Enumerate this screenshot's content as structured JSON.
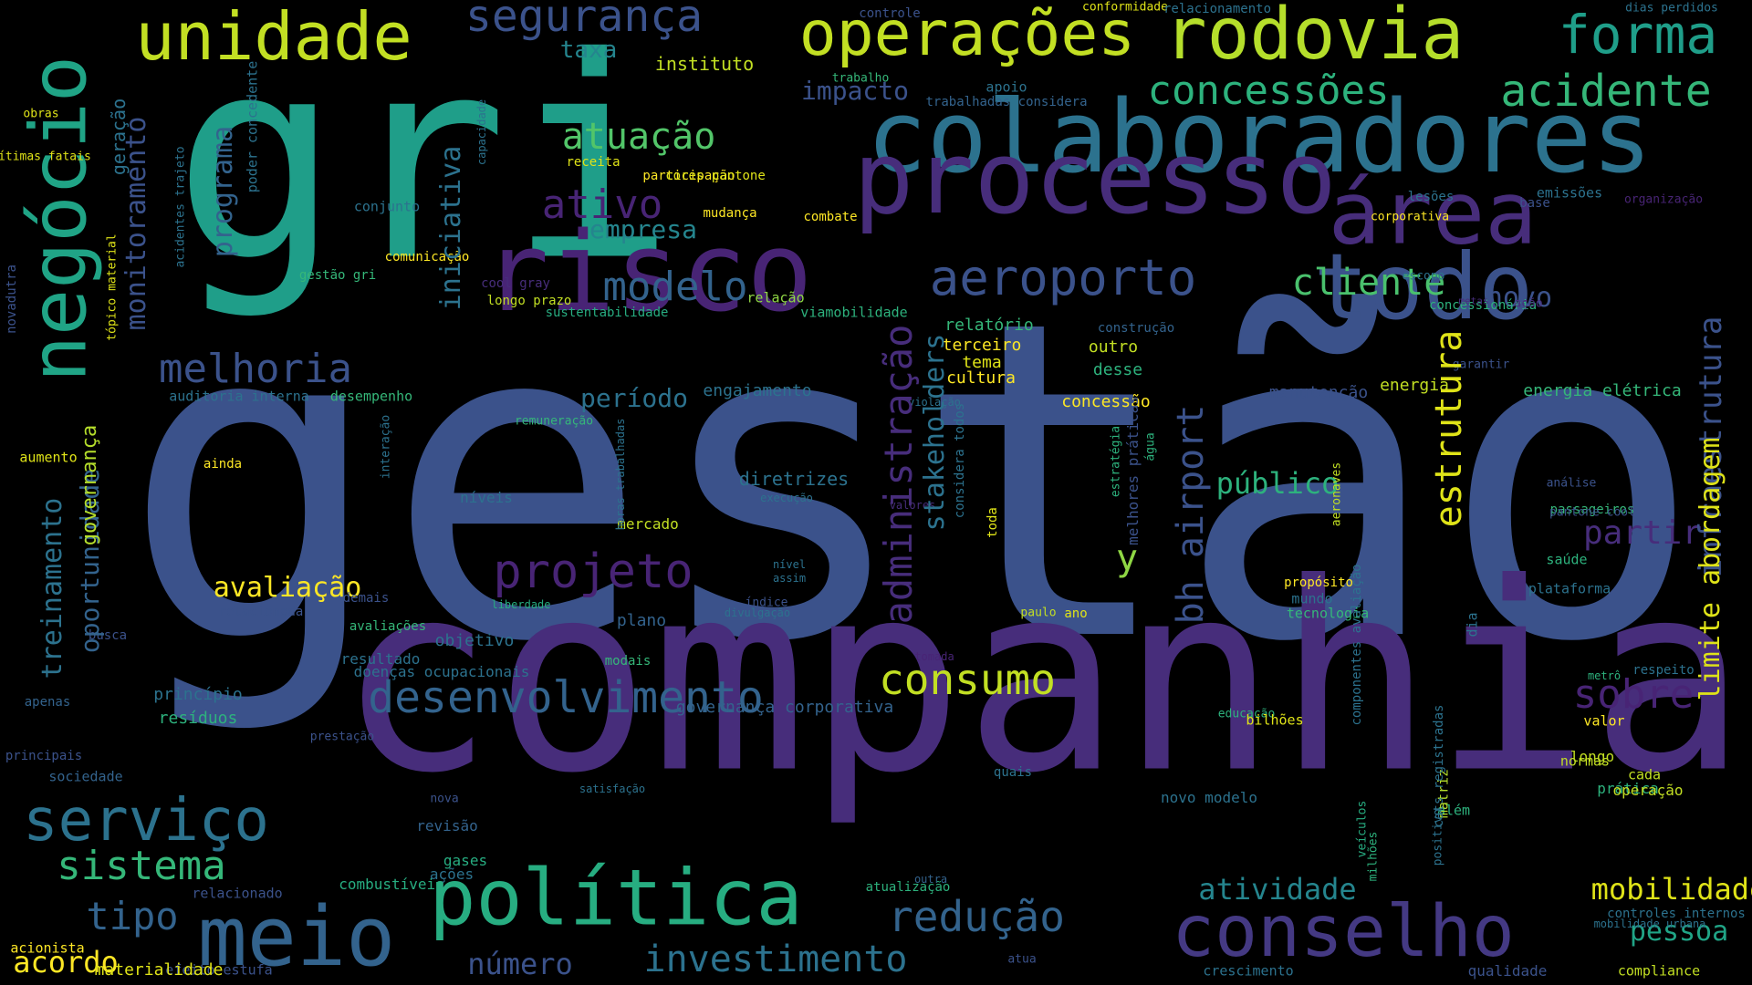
{
  "cloud": {
    "words": [
      {
        "t": "gestão",
        "c": "#3b528b"
      },
      {
        "t": "companhia",
        "c": "#472d7b"
      },
      {
        "t": "gri",
        "c": "#1f9e89"
      },
      {
        "t": "colaboradores",
        "c": "#2c728e"
      },
      {
        "t": "processo",
        "c": "#472d7b"
      },
      {
        "t": "risco",
        "c": "#482475"
      },
      {
        "t": "todo",
        "c": "#3b528b"
      },
      {
        "t": "área",
        "c": "#472d7b"
      },
      {
        "t": "rodovia",
        "c": "#b5de2b"
      },
      {
        "t": "operações",
        "c": "#c2df23"
      },
      {
        "t": "unidade",
        "c": "#c2df23"
      },
      {
        "t": "negócio",
        "c": "#20a486"
      },
      {
        "t": "conselho",
        "c": "#443983"
      },
      {
        "t": "política",
        "c": "#27ad81"
      },
      {
        "t": "meio",
        "c": "#33638d"
      },
      {
        "t": "serviço",
        "c": "#2c728e"
      },
      {
        "t": "aeroporto",
        "c": "#3b528b"
      },
      {
        "t": "desenvolvimento",
        "c": "#33638d"
      },
      {
        "t": "forma",
        "c": "#1f9e89"
      },
      {
        "t": "concessões",
        "c": "#2db27d"
      },
      {
        "t": "acidente",
        "c": "#35b779"
      },
      {
        "t": "segurança",
        "c": "#3b528b"
      },
      {
        "t": "sistema",
        "c": "#35b779"
      },
      {
        "t": "consumo",
        "c": "#c2df23"
      },
      {
        "t": "redução",
        "c": "#33638d"
      },
      {
        "t": "investimento",
        "c": "#2c728e"
      },
      {
        "t": "melhoria",
        "c": "#3b528b"
      },
      {
        "t": "projeto",
        "c": "#482475"
      },
      {
        "t": "modelo",
        "c": "#33638d"
      },
      {
        "t": "cliente",
        "c": "#4ac16d"
      },
      {
        "t": "atuação",
        "c": "#52c569"
      },
      {
        "t": "ativo",
        "c": "#482475"
      },
      {
        "t": "tipo",
        "c": "#33638d"
      },
      {
        "t": "acordo",
        "c": "#fde725"
      },
      {
        "t": "número",
        "c": "#3b528b"
      },
      {
        "t": "atividade",
        "c": "#25858e"
      },
      {
        "t": "mobilidade",
        "c": "#dfe318"
      },
      {
        "t": "pessoa",
        "c": "#20a486"
      },
      {
        "t": "sobre",
        "c": "#482475"
      },
      {
        "t": "partir",
        "c": "#472d7b"
      },
      {
        "t": "público",
        "c": "#2db27d"
      },
      {
        "t": "novo",
        "c": "#3b528b"
      },
      {
        "t": "período",
        "c": "#2c728e"
      },
      {
        "t": "avaliação",
        "c": "#fde725"
      },
      {
        "t": "impacto",
        "c": "#3b528b"
      },
      {
        "t": "empresa",
        "c": "#25858e"
      },
      {
        "t": "taxa",
        "c": "#25858e"
      },
      {
        "t": "instituto",
        "c": "#c2df23"
      },
      {
        "t": "y",
        "c": "#8fd744"
      },
      {
        "t": "diretrizes",
        "c": "#2c728e"
      },
      {
        "t": "plano",
        "c": "#33638d"
      },
      {
        "t": "princípio",
        "c": "#2c728e"
      },
      {
        "t": "resíduos",
        "c": "#2db27d"
      },
      {
        "t": "relatório",
        "c": "#35b779"
      },
      {
        "t": "manutenção",
        "c": "#3b528b"
      },
      {
        "t": "energia",
        "c": "#c2df23"
      },
      {
        "t": "energia elétrica",
        "c": "#35b779"
      },
      {
        "t": "engajamento",
        "c": "#2c728e"
      },
      {
        "t": "outro",
        "c": "#c2df23"
      },
      {
        "t": "desse",
        "c": "#2db27d"
      },
      {
        "t": "cultura",
        "c": "#fde725"
      },
      {
        "t": "tema",
        "c": "#dfe318"
      },
      {
        "t": "terceiro",
        "c": "#fde725"
      },
      {
        "t": "concessão",
        "c": "#fde725"
      },
      {
        "t": "governança corporativa",
        "c": "#33638d"
      },
      {
        "t": "objetivo",
        "c": "#2c728e"
      },
      {
        "t": "revisão",
        "c": "#33638d"
      },
      {
        "t": "ações",
        "c": "#2c728e"
      },
      {
        "t": "gases",
        "c": "#27ad81"
      },
      {
        "t": "resultado",
        "c": "#2c728e"
      },
      {
        "t": "doenças ocupacionais",
        "c": "#2c728e"
      },
      {
        "t": "modais",
        "c": "#35b779"
      },
      {
        "t": "combustíveis",
        "c": "#27ad81"
      },
      {
        "t": "atualização",
        "c": "#2db27d"
      },
      {
        "t": "efeito estufa",
        "c": "#3b528b"
      },
      {
        "t": "materialidade",
        "c": "#dfe318"
      },
      {
        "t": "acionista",
        "c": "#fde725"
      },
      {
        "t": "relacionado",
        "c": "#3b528b"
      },
      {
        "t": "sociedade",
        "c": "#33638d"
      },
      {
        "t": "principais",
        "c": "#3b528b"
      },
      {
        "t": "apenas",
        "c": "#33638d"
      },
      {
        "t": "busca",
        "c": "#3b528b"
      },
      {
        "t": "relacionada",
        "c": "#3b528b"
      },
      {
        "t": "avaliações",
        "c": "#35b779"
      },
      {
        "t": "demais",
        "c": "#3b528b"
      },
      {
        "t": "níveis",
        "c": "#2c728e"
      },
      {
        "t": "mercado",
        "c": "#c2df23"
      },
      {
        "t": "ainda",
        "c": "#fde725"
      },
      {
        "t": "aumento",
        "c": "#dfe318"
      },
      {
        "t": "auditoria interna",
        "c": "#2c728e"
      },
      {
        "t": "desempenho",
        "c": "#35b779"
      },
      {
        "t": "remuneração",
        "c": "#35b779"
      },
      {
        "t": "conjunto",
        "c": "#2c728e"
      },
      {
        "t": "comunicação",
        "c": "#fde725"
      },
      {
        "t": "gestão gri",
        "c": "#35b779"
      },
      {
        "t": "longo prazo",
        "c": "#c2df23"
      },
      {
        "t": "cool gray",
        "c": "#472d7b"
      },
      {
        "t": "sustentabilidade",
        "c": "#27ad81"
      },
      {
        "t": "relação",
        "c": "#8fd744"
      },
      {
        "t": "viamobilidade",
        "c": "#2db27d"
      },
      {
        "t": "construção",
        "c": "#33638d"
      },
      {
        "t": "combate",
        "c": "#fde725"
      },
      {
        "t": "mudança",
        "c": "#fde725"
      },
      {
        "t": "participação",
        "c": "#fde725"
      },
      {
        "t": "cores pantone",
        "c": "#dfe318"
      },
      {
        "t": "receita",
        "c": "#dfe318"
      },
      {
        "t": "obras",
        "c": "#dfe318"
      },
      {
        "t": "vítimas fatais",
        "c": "#dfe318"
      },
      {
        "t": "trabalho",
        "c": "#35b779"
      },
      {
        "t": "apoio",
        "c": "#2c728e"
      },
      {
        "t": "trabalhadas considera",
        "c": "#33638d"
      },
      {
        "t": "controle",
        "c": "#3b528b"
      },
      {
        "t": "conformidade",
        "c": "#dfe318"
      },
      {
        "t": "relacionamento",
        "c": "#2c728e"
      },
      {
        "t": "dias perdidos",
        "c": "#2c728e"
      },
      {
        "t": "lesões",
        "c": "#2c728e"
      },
      {
        "t": "corporativa",
        "c": "#fde725"
      },
      {
        "t": "emissões",
        "c": "#2c728e"
      },
      {
        "t": "base",
        "c": "#3b528b"
      },
      {
        "t": "organização",
        "c": "#482475"
      },
      {
        "t": "escopo",
        "c": "#2c728e"
      },
      {
        "t": "concessionária",
        "c": "#2db27d"
      },
      {
        "t": "metas",
        "c": "#472d7b"
      },
      {
        "t": "ação",
        "c": "#472d7b"
      },
      {
        "t": "garantir",
        "c": "#3b528b"
      },
      {
        "t": "violação",
        "c": "#2c728e"
      },
      {
        "t": "valores",
        "c": "#472d7b"
      },
      {
        "t": "execução",
        "c": "#2c728e"
      },
      {
        "t": "nível",
        "c": "#2c728e"
      },
      {
        "t": "assim",
        "c": "#2c728e"
      },
      {
        "t": "índice",
        "c": "#3b528b"
      },
      {
        "t": "divulgação",
        "c": "#2c728e"
      },
      {
        "t": "liberdade",
        "c": "#27ad81"
      },
      {
        "t": "tomada",
        "c": "#482475"
      },
      {
        "t": "outra",
        "c": "#33638d"
      },
      {
        "t": "atua",
        "c": "#3b528b"
      },
      {
        "t": "prestação",
        "c": "#3b528b"
      },
      {
        "t": "nova",
        "c": "#3b528b"
      },
      {
        "t": "satisfação",
        "c": "#2c728e"
      },
      {
        "t": "quais",
        "c": "#2c728e"
      },
      {
        "t": "novo modelo",
        "c": "#2c728e"
      },
      {
        "t": "paulo",
        "c": "#c2df23"
      },
      {
        "t": "ano",
        "c": "#dfe318"
      },
      {
        "t": "propósito",
        "c": "#fde725"
      },
      {
        "t": "mundo",
        "c": "#2c728e"
      },
      {
        "t": "tecnologia",
        "c": "#35b779"
      },
      {
        "t": "análise",
        "c": "#3b528b"
      },
      {
        "t": "passageiros",
        "c": "#35b779"
      },
      {
        "t": "pantone cool",
        "c": "#3b528b"
      },
      {
        "t": "saúde",
        "c": "#2db27d"
      },
      {
        "t": "plataforma",
        "c": "#2c728e"
      },
      {
        "t": "metrô",
        "c": "#2db27d"
      },
      {
        "t": "respeito",
        "c": "#2c728e"
      },
      {
        "t": "educação",
        "c": "#2db27d"
      },
      {
        "t": "bilhões",
        "c": "#dfe318"
      },
      {
        "t": "valor",
        "c": "#fde725"
      },
      {
        "t": "normas",
        "c": "#c2df23"
      },
      {
        "t": "longo",
        "c": "#c2df23"
      },
      {
        "t": "cada",
        "c": "#c2df23"
      },
      {
        "t": "prática",
        "c": "#2db27d"
      },
      {
        "t": "operação",
        "c": "#c2df23"
      },
      {
        "t": "além",
        "c": "#2db27d"
      },
      {
        "t": "controles internos",
        "c": "#2c728e"
      },
      {
        "t": "mobilidade urbana",
        "c": "#2c728e"
      },
      {
        "t": "crescimento",
        "c": "#2c728e"
      },
      {
        "t": "qualidade",
        "c": "#3b528b"
      },
      {
        "t": "compliance",
        "c": "#c2df23"
      },
      {
        "t": "monitoramento",
        "c": "#3b528b"
      },
      {
        "t": "programa",
        "c": "#33638d"
      },
      {
        "t": "geração",
        "c": "#2c728e"
      },
      {
        "t": "treinamento",
        "c": "#2c728e"
      },
      {
        "t": "oportunidade",
        "c": "#33638d"
      },
      {
        "t": "governança",
        "c": "#b5de2b"
      },
      {
        "t": "iniciativa",
        "c": "#2c728e"
      },
      {
        "t": "administração",
        "c": "#472d7b"
      },
      {
        "t": "stakeholders",
        "c": "#2c728e"
      },
      {
        "t": "bh airport",
        "c": "#3b528b"
      },
      {
        "t": "estrutura",
        "c": "#dfe318"
      },
      {
        "t": "infraestrutura",
        "c": "#3b528b"
      },
      {
        "t": "limite abordagem",
        "c": "#dfe318"
      },
      {
        "t": "novadutra",
        "c": "#3b528b"
      },
      {
        "t": "tópico material",
        "c": "#dfe318"
      },
      {
        "t": "acidentes trajeto",
        "c": "#2c728e"
      },
      {
        "t": "poder concedente",
        "c": "#2c728e"
      },
      {
        "t": "capacidade",
        "c": "#2c728e"
      },
      {
        "t": "interação",
        "c": "#2c728e"
      },
      {
        "t": "horas trabalhadas",
        "c": "#2c728e"
      },
      {
        "t": "considera todos",
        "c": "#2c728e"
      },
      {
        "t": "toda",
        "c": "#dfe318"
      },
      {
        "t": "estratégia",
        "c": "#2db27d"
      },
      {
        "t": "melhores práticas",
        "c": "#3b528b"
      },
      {
        "t": "água",
        "c": "#2db27d"
      },
      {
        "t": "componentes avaliação",
        "c": "#2c728e"
      },
      {
        "t": "aeronaves",
        "c": "#c2df23"
      },
      {
        "t": "dia",
        "c": "#2c728e"
      },
      {
        "t": "matriz",
        "c": "#b5de2b"
      },
      {
        "t": "cats registradas",
        "c": "#2c728e"
      },
      {
        "t": "positivo",
        "c": "#2c728e"
      },
      {
        "t": "milhões",
        "c": "#2db27d"
      },
      {
        "t": "veículos",
        "c": "#27ad81"
      }
    ]
  }
}
